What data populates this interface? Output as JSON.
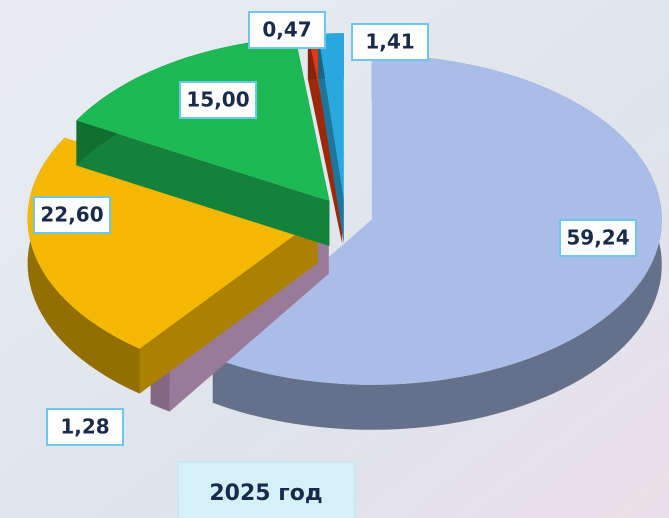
{
  "chart_data": {
    "type": "pie",
    "title": "2025 год",
    "categories": [
      null,
      null,
      null,
      null,
      null,
      null
    ],
    "values": [
      59.24,
      1.28,
      22.6,
      15.0,
      0.47,
      1.41
    ],
    "value_labels": [
      "59,24",
      "1,28",
      "22,60",
      "15,00",
      "0,47",
      "1,41"
    ],
    "colors": [
      "#a9bde8",
      "#dcaedb",
      "#f5b800",
      "#1db954",
      "#e03a10",
      "#29a8e0"
    ]
  }
}
